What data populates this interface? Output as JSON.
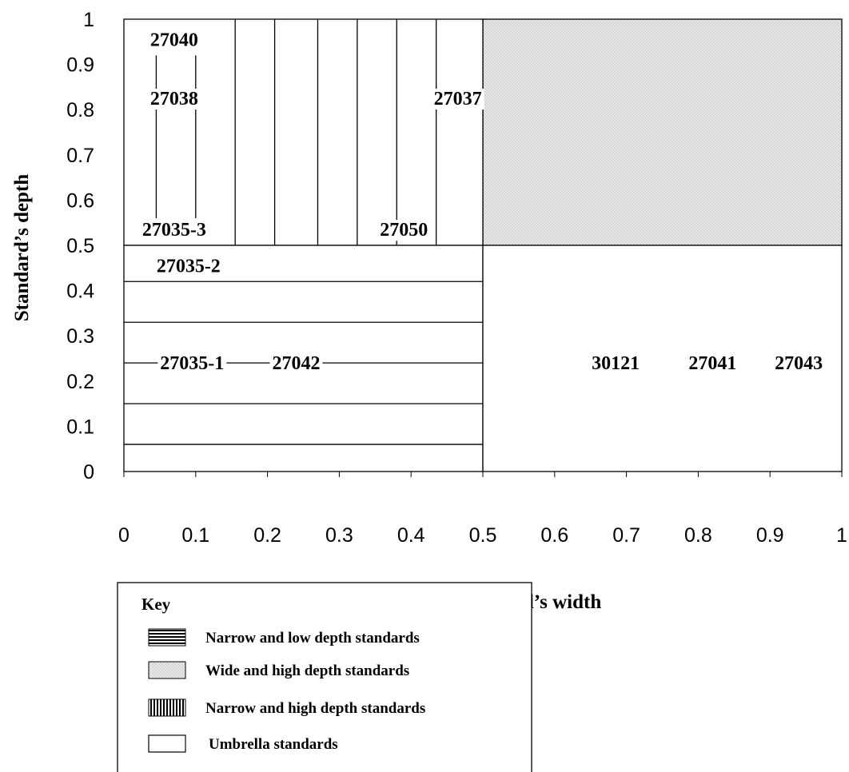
{
  "chart_data": {
    "type": "diagram",
    "xlabel": "Standard’s width",
    "ylabel": "Standard’s depth",
    "xlim": [
      0,
      1
    ],
    "ylim": [
      0,
      1
    ],
    "x_ticks": [
      "0",
      "0.1",
      "0.2",
      "0.3",
      "0.4",
      "0.5",
      "0.6",
      "0.7",
      "0.8",
      "0.9",
      "1"
    ],
    "y_ticks": [
      "0",
      "0.1",
      "0.2",
      "0.3",
      "0.4",
      "0.5",
      "0.6",
      "0.7",
      "0.8",
      "0.9",
      "1"
    ],
    "regions": [
      {
        "category": "Wide and high depth standards",
        "x": [
          0.5,
          1
        ],
        "y": [
          0.5,
          1
        ]
      },
      {
        "category": "Narrow and high depth standards",
        "x": [
          0,
          0.5
        ],
        "y": [
          0.5,
          1
        ]
      },
      {
        "category": "Narrow and low depth standards",
        "x": [
          0,
          0.5
        ],
        "y": [
          0,
          0.5
        ]
      },
      {
        "category": "Umbrella standards",
        "x": [
          0.5,
          1
        ],
        "y": [
          0,
          0.5
        ]
      }
    ],
    "vertical_lines": [
      {
        "x": 0.045,
        "y": [
          0.56,
          0.92
        ]
      },
      {
        "x": 0.1,
        "y": [
          0.56,
          0.92
        ]
      },
      {
        "x": 0.155,
        "y": [
          0.5,
          1
        ]
      },
      {
        "x": 0.21,
        "y": [
          0.5,
          1
        ]
      },
      {
        "x": 0.27,
        "y": [
          0.5,
          1
        ]
      },
      {
        "x": 0.325,
        "y": [
          0.5,
          1
        ]
      },
      {
        "x": 0.38,
        "y": [
          0.5,
          1
        ]
      },
      {
        "x": 0.435,
        "y": [
          0.5,
          1
        ]
      }
    ],
    "horizontal_lines": [
      {
        "y": 0.42,
        "x": [
          0,
          0.5
        ]
      },
      {
        "y": 0.33,
        "x": [
          0,
          0.5
        ]
      },
      {
        "y": 0.24,
        "x": [
          0,
          0.5
        ]
      },
      {
        "y": 0.15,
        "x": [
          0,
          0.5
        ]
      },
      {
        "y": 0.06,
        "x": [
          0,
          0.5
        ]
      }
    ],
    "standards": [
      {
        "label": "27040",
        "x": 0.07,
        "y": 0.955
      },
      {
        "label": "27038",
        "x": 0.07,
        "y": 0.825
      },
      {
        "label": "27037",
        "x": 0.465,
        "y": 0.825
      },
      {
        "label": "27035-3",
        "x": 0.07,
        "y": 0.535
      },
      {
        "label": "27050",
        "x": 0.39,
        "y": 0.535
      },
      {
        "label": "27035-2",
        "x": 0.09,
        "y": 0.455
      },
      {
        "label": "27035-1",
        "x": 0.095,
        "y": 0.24
      },
      {
        "label": "27042",
        "x": 0.24,
        "y": 0.24
      },
      {
        "label": "30121",
        "x": 0.685,
        "y": 0.24
      },
      {
        "label": "27041",
        "x": 0.82,
        "y": 0.24
      },
      {
        "label": "27043",
        "x": 0.94,
        "y": 0.24
      }
    ]
  },
  "key": {
    "title": "Key",
    "items": [
      {
        "label": "Narrow and low depth standards",
        "pattern": "horizontal-lines"
      },
      {
        "label": "Wide and high depth standards",
        "pattern": "dotted-grey"
      },
      {
        "label": "Narrow and high depth standards",
        "pattern": "vertical-lines"
      },
      {
        "label": "Umbrella standards",
        "pattern": "blank"
      }
    ]
  },
  "colors": {
    "line": "#000000",
    "wide_high_fill": "#e8e8e8",
    "dot": "#bdbdbd",
    "background": "#ffffff"
  }
}
